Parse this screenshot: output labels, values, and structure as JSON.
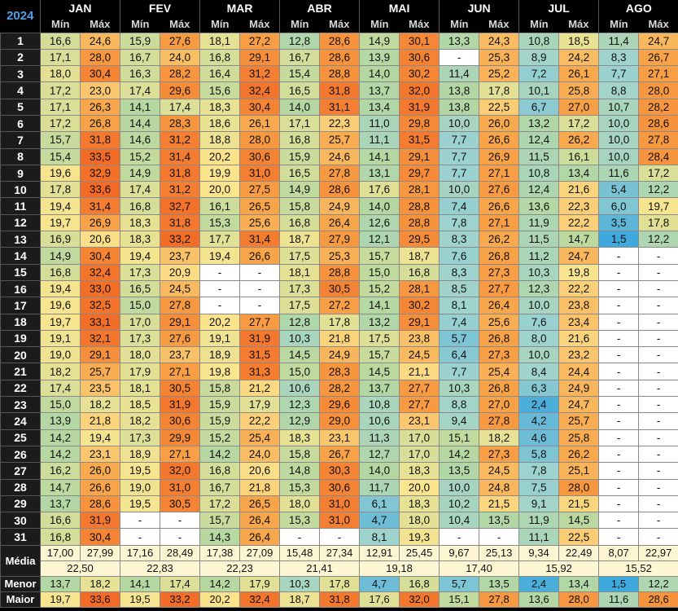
{
  "year": "2024",
  "sub_min": "Mín",
  "sub_max": "Máx",
  "months": [
    "JAN",
    "FEV",
    "MAR",
    "ABR",
    "MAI",
    "JUN",
    "JUL",
    "AGO"
  ],
  "days": [
    "1",
    "2",
    "3",
    "4",
    "5",
    "6",
    "7",
    "8",
    "9",
    "10",
    "11",
    "12",
    "13",
    "14",
    "15",
    "16",
    "17",
    "18",
    "19",
    "20",
    "21",
    "22",
    "23",
    "24",
    "25",
    "26",
    "27",
    "28",
    "29",
    "30",
    "31"
  ],
  "rows": [
    [
      "16,6",
      "24,6",
      "15,9",
      "27,6",
      "18,1",
      "27,2",
      "12,8",
      "28,6",
      "14,9",
      "30,1",
      "13,3",
      "24,3",
      "10,8",
      "18,5",
      "11,4",
      "24,7"
    ],
    [
      "17,1",
      "28,0",
      "16,7",
      "24,0",
      "16,8",
      "29,1",
      "16,7",
      "28,6",
      "13,9",
      "30,6",
      "-",
      "25,3",
      "8,9",
      "24,2",
      "8,3",
      "26,7"
    ],
    [
      "18,0",
      "30,4",
      "16,3",
      "28,2",
      "16,4",
      "31,2",
      "15,4",
      "28,8",
      "14,0",
      "30,2",
      "11,4",
      "25,2",
      "7,2",
      "26,1",
      "7,7",
      "27,1"
    ],
    [
      "17,2",
      "23,0",
      "17,4",
      "29,6",
      "15,6",
      "32,4",
      "16,5",
      "31,8",
      "13,7",
      "32,0",
      "13,8",
      "17,8",
      "10,1",
      "25,8",
      "8,8",
      "28,0"
    ],
    [
      "17,1",
      "26,3",
      "14,1",
      "17,4",
      "18,3",
      "30,4",
      "14,0",
      "31,1",
      "13,4",
      "31,9",
      "13,8",
      "22,5",
      "6,7",
      "27,0",
      "10,7",
      "28,2"
    ],
    [
      "17,2",
      "26,8",
      "14,4",
      "28,3",
      "18,6",
      "26,1",
      "17,1",
      "22,3",
      "11,0",
      "29,8",
      "10,0",
      "26,0",
      "13,2",
      "17,2",
      "10,0",
      "28,6"
    ],
    [
      "15,7",
      "31,8",
      "14,6",
      "31,2",
      "18,8",
      "28,0",
      "16,8",
      "25,7",
      "11,1",
      "31,5",
      "7,7",
      "26,6",
      "12,4",
      "26,2",
      "10,0",
      "27,8"
    ],
    [
      "15,4",
      "33,5",
      "15,2",
      "31,4",
      "20,2",
      "30,6",
      "15,9",
      "24,6",
      "14,1",
      "29,1",
      "7,7",
      "26,9",
      "11,5",
      "16,1",
      "10,0",
      "28,4"
    ],
    [
      "19,6",
      "32,9",
      "14,9",
      "31,8",
      "19,9",
      "31,0",
      "16,5",
      "27,8",
      "13,1",
      "29,7",
      "7,7",
      "27,1",
      "10,8",
      "13,4",
      "11,6",
      "17,2"
    ],
    [
      "17,8",
      "33,6",
      "17,4",
      "31,2",
      "20,0",
      "27,5",
      "14,9",
      "28,6",
      "17,6",
      "28,1",
      "10,0",
      "27,6",
      "12,4",
      "21,6",
      "5,4",
      "12,2"
    ],
    [
      "19,4",
      "31,4",
      "16,8",
      "32,7",
      "16,1",
      "26,5",
      "15,8",
      "24,9",
      "14,0",
      "28,8",
      "7,4",
      "26,6",
      "13,6",
      "22,3",
      "6,0",
      "19,7"
    ],
    [
      "19,7",
      "26,9",
      "18,3",
      "31,8",
      "15,3",
      "25,6",
      "16,8",
      "26,4",
      "12,6",
      "28,8",
      "7,8",
      "27,1",
      "11,9",
      "22,2",
      "3,5",
      "17,8"
    ],
    [
      "16,9",
      "20,6",
      "18,3",
      "33,2",
      "17,7",
      "31,4",
      "18,7",
      "27,9",
      "12,1",
      "29,5",
      "8,3",
      "26,2",
      "11,5",
      "14,7",
      "1,5",
      "12,2"
    ],
    [
      "14,9",
      "30,4",
      "19,4",
      "23,7",
      "19,4",
      "26,6",
      "17,5",
      "25,3",
      "15,7",
      "18,7",
      "7,6",
      "26,8",
      "11,2",
      "24,7",
      "-",
      "-"
    ],
    [
      "16,8",
      "32,4",
      "17,3",
      "20,9",
      "-",
      "-",
      "18,1",
      "28,8",
      "15,0",
      "16,8",
      "8,3",
      "27,3",
      "10,3",
      "19,8",
      "-",
      "-"
    ],
    [
      "19,4",
      "33,0",
      "16,5",
      "24,5",
      "-",
      "-",
      "17,3",
      "30,5",
      "15,2",
      "28,1",
      "8,5",
      "27,7",
      "12,3",
      "22,2",
      "-",
      "-"
    ],
    [
      "19,6",
      "32,5",
      "15,0",
      "27,8",
      "-",
      "-",
      "17,5",
      "27,2",
      "14,1",
      "30,2",
      "8,1",
      "26,4",
      "10,0",
      "23,8",
      "-",
      "-"
    ],
    [
      "19,7",
      "33,1",
      "17,0",
      "29,1",
      "20,2",
      "27,7",
      "12,8",
      "17,8",
      "13,2",
      "29,1",
      "7,4",
      "25,6",
      "7,6",
      "23,4",
      "-",
      "-"
    ],
    [
      "19,1",
      "32,1",
      "17,3",
      "27,6",
      "19,1",
      "31,9",
      "10,3",
      "21,8",
      "17,5",
      "23,8",
      "5,7",
      "26,8",
      "8,0",
      "21,6",
      "-",
      "-"
    ],
    [
      "19,0",
      "29,1",
      "18,0",
      "23,7",
      "18,9",
      "31,5",
      "14,5",
      "24,9",
      "15,7",
      "24,5",
      "6,4",
      "27,3",
      "10,0",
      "23,2",
      "-",
      "-"
    ],
    [
      "18,2",
      "25,7",
      "17,9",
      "27,1",
      "19,8",
      "31,3",
      "15,0",
      "28,3",
      "14,5",
      "21,1",
      "7,7",
      "25,4",
      "8,4",
      "24,4",
      "-",
      "-"
    ],
    [
      "17,4",
      "23,5",
      "18,1",
      "30,5",
      "15,8",
      "21,2",
      "10,6",
      "28,2",
      "13,7",
      "27,7",
      "10,3",
      "26,8",
      "6,3",
      "24,9",
      "-",
      "-"
    ],
    [
      "15,0",
      "18,2",
      "18,5",
      "31,9",
      "15,9",
      "17,9",
      "12,3",
      "29,6",
      "10,8",
      "27,7",
      "8,8",
      "27,0",
      "2,4",
      "24,7",
      "-",
      "-"
    ],
    [
      "13,9",
      "21,8",
      "18,2",
      "30,6",
      "15,9",
      "22,2",
      "12,9",
      "29,0",
      "10,6",
      "23,1",
      "9,4",
      "27,8",
      "4,2",
      "25,7",
      "-",
      "-"
    ],
    [
      "14,2",
      "19,4",
      "17,3",
      "29,9",
      "15,2",
      "25,4",
      "18,3",
      "23,1",
      "11,3",
      "17,0",
      "15,1",
      "18,2",
      "4,6",
      "25,8",
      "-",
      "-"
    ],
    [
      "14,2",
      "23,1",
      "18,9",
      "27,1",
      "14,2",
      "24,0",
      "15,8",
      "26,7",
      "12,7",
      "17,0",
      "14,2",
      "27,3",
      "5,8",
      "26,2",
      "-",
      "-"
    ],
    [
      "16,2",
      "26,0",
      "19,5",
      "32,0",
      "16,8",
      "20,6",
      "14,8",
      "30,3",
      "14,0",
      "18,3",
      "13,5",
      "24,5",
      "7,8",
      "25,1",
      "-",
      "-"
    ],
    [
      "14,7",
      "26,6",
      "19,0",
      "31,0",
      "16,7",
      "21,8",
      "15,3",
      "30,6",
      "11,7",
      "20,0",
      "10,0",
      "24,8",
      "7,5",
      "28,0",
      "-",
      "-"
    ],
    [
      "13,7",
      "28,6",
      "19,5",
      "30,5",
      "17,2",
      "26,5",
      "18,0",
      "31,0",
      "6,1",
      "18,3",
      "10,2",
      "21,5",
      "9,1",
      "21,5",
      "-",
      "-"
    ],
    [
      "16,6",
      "31,9",
      "-",
      "-",
      "15,7",
      "26,4",
      "15,3",
      "31,0",
      "4,7",
      "18,0",
      "10,4",
      "13,5",
      "11,9",
      "14,5",
      "-",
      "-"
    ],
    [
      "16,8",
      "30,4",
      "-",
      "-",
      "14,3",
      "26,4",
      "-",
      "-",
      "8,1",
      "19,3",
      "-",
      "-",
      "11,1",
      "22,5",
      "-",
      "-"
    ]
  ],
  "stats": {
    "media_label": "Média",
    "media": [
      "17,00",
      "27,99",
      "17,16",
      "28,49",
      "17,38",
      "27,09",
      "15,48",
      "27,34",
      "12,91",
      "25,45",
      "9,67",
      "25,13",
      "9,34",
      "22,49",
      "8,07",
      "22,97"
    ],
    "media_total": [
      "22,50",
      "22,83",
      "22,23",
      "21,41",
      "19,18",
      "17,40",
      "15,92",
      "15,52"
    ],
    "menor_label": "Menor",
    "menor": [
      "13,7",
      "18,2",
      "14,1",
      "17,4",
      "14,2",
      "17,9",
      "10,3",
      "17,8",
      "4,7",
      "16,8",
      "5,7",
      "13,5",
      "2,4",
      "13,4",
      "1,5",
      "12,2"
    ],
    "maior_label": "Maior",
    "maior": [
      "19,7",
      "33,6",
      "19,5",
      "33,2",
      "20,2",
      "32,4",
      "18,7",
      "31,8",
      "17,6",
      "32,0",
      "15,1",
      "27,8",
      "13,6",
      "28,0",
      "11,6",
      "28,6"
    ]
  },
  "colors": {
    "cold": "#3fa8dc",
    "cool": "#9fd3cf",
    "mild": "#b4d7a2",
    "warm": "#fbe58e",
    "hot": "#f8a045",
    "very_hot": "#f26a25"
  }
}
